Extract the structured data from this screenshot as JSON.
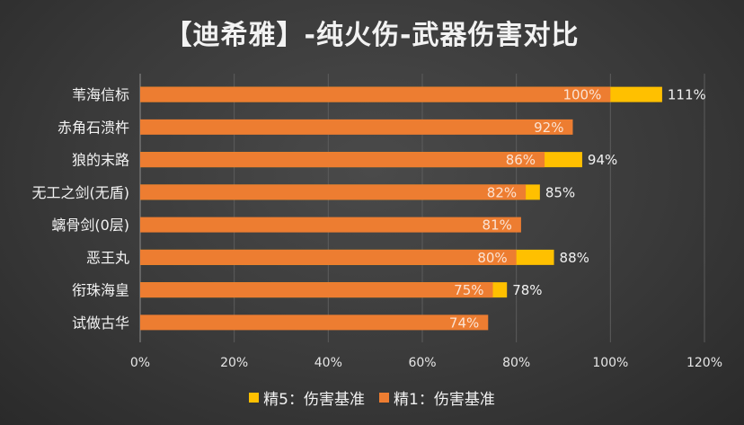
{
  "chart_data": {
    "type": "bar",
    "orientation": "horizontal",
    "title": "【迪希雅】-纯火伤-武器伤害对比",
    "categories": [
      "苇海信标",
      "赤角石溃杵",
      "狼的末路",
      "无工之剑(无盾)",
      "螭骨剑(0层)",
      "恶王丸",
      "衔珠海皇",
      "试做古华"
    ],
    "series": [
      {
        "name": "精1：伤害基准",
        "color": "#ED7D31",
        "values": [
          100,
          92,
          86,
          82,
          81,
          80,
          75,
          74
        ],
        "labels": [
          "100%",
          "92%",
          "86%",
          "82%",
          "81%",
          "80%",
          "75%",
          "74%"
        ]
      },
      {
        "name": "精5：伤害基准",
        "color": "#FFC000",
        "values": [
          111,
          92,
          94,
          85,
          81,
          88,
          78,
          74
        ],
        "labels": [
          "111%",
          "",
          "94%",
          "85%",
          "",
          "88%",
          "78%",
          ""
        ]
      }
    ],
    "xlim": [
      0,
      120
    ],
    "xticks": [
      0,
      20,
      40,
      60,
      80,
      100,
      120
    ],
    "xtick_labels": [
      "0%",
      "20%",
      "40%",
      "60%",
      "80%",
      "100%",
      "120%"
    ],
    "grid": true,
    "legend": "bottom"
  }
}
